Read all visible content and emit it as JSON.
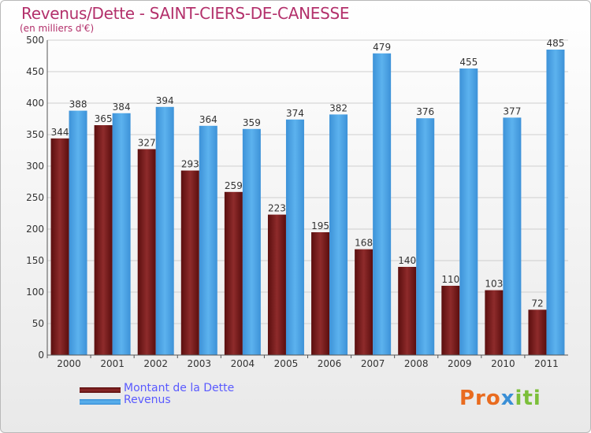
{
  "chart_data": {
    "type": "bar",
    "title": "Revenus/Dette - SAINT-CIERS-DE-CANESSE",
    "subtitle": "(en milliers d'€)",
    "categories": [
      "2000",
      "2001",
      "2002",
      "2003",
      "2004",
      "2005",
      "2006",
      "2007",
      "2008",
      "2009",
      "2010",
      "2011"
    ],
    "series": [
      {
        "name": "Montant de la Dette",
        "color": "#7a1b1b",
        "values": [
          344,
          365,
          327,
          293,
          259,
          223,
          195,
          168,
          140,
          110,
          103,
          72
        ]
      },
      {
        "name": "Revenus",
        "color": "#4da6e8",
        "values": [
          388,
          384,
          394,
          364,
          359,
          374,
          382,
          479,
          376,
          455,
          377,
          485
        ]
      }
    ],
    "ylim": [
      0,
      500
    ],
    "yticks": [
      0,
      50,
      100,
      150,
      200,
      250,
      300,
      350,
      400,
      450,
      500
    ],
    "grid": true,
    "legend": "bottom-left"
  },
  "logo": {
    "text": "Proxiti"
  }
}
